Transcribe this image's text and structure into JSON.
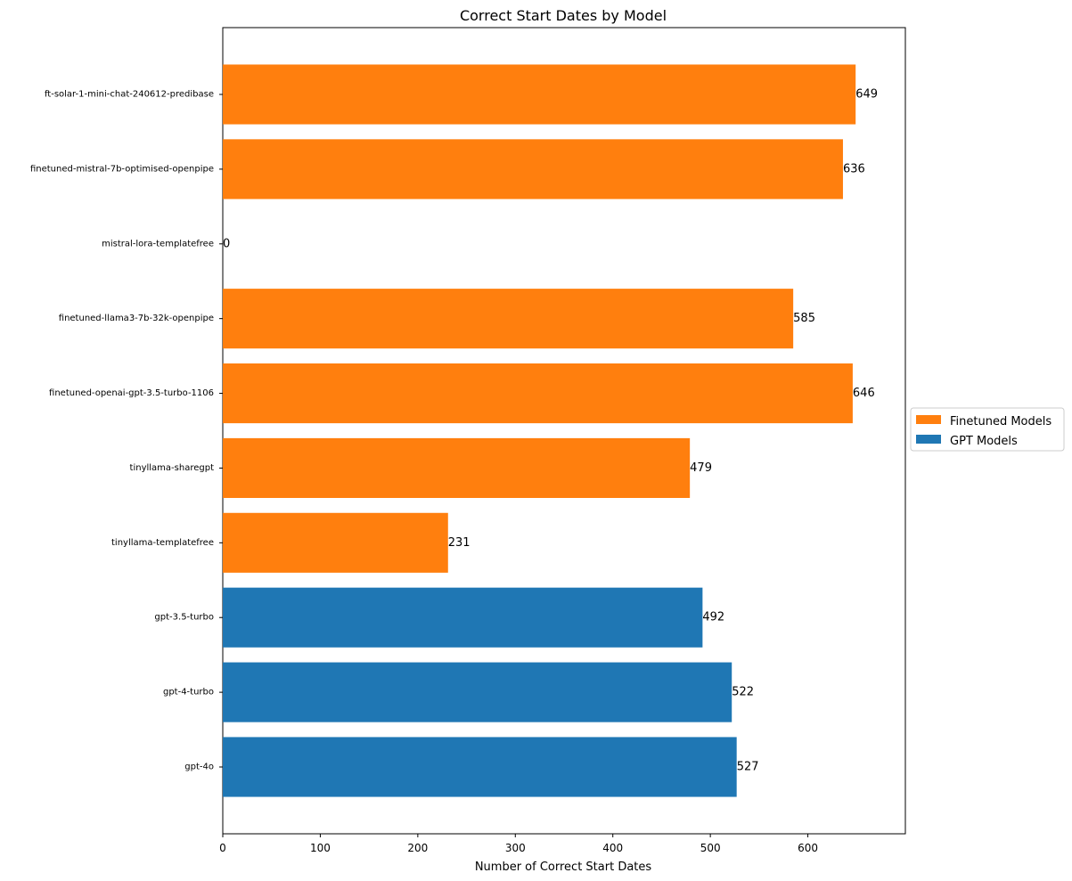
{
  "chart_data": {
    "type": "bar",
    "orientation": "horizontal",
    "title": "Correct Start Dates by Model",
    "xlabel": "Number of Correct Start Dates",
    "ylabel": "",
    "xlim": [
      0,
      700
    ],
    "xticks": [
      0,
      100,
      200,
      300,
      400,
      500,
      600
    ],
    "grid": false,
    "legend_position": "right",
    "legend": [
      {
        "name": "Finetuned Models",
        "color": "#ff7f0e"
      },
      {
        "name": "GPT Models",
        "color": "#1f77b4"
      }
    ],
    "categories": [
      "ft-solar-1-mini-chat-240612-predibase",
      "finetuned-mistral-7b-optimised-openpipe",
      "mistral-lora-templatefree",
      "finetuned-llama3-7b-32k-openpipe",
      "finetuned-openai-gpt-3.5-turbo-1106",
      "tinyllama-sharegpt",
      "tinyllama-templatefree",
      "gpt-3.5-turbo",
      "gpt-4-turbo",
      "gpt-4o"
    ],
    "values": [
      649,
      636,
      0,
      585,
      646,
      479,
      231,
      492,
      522,
      527
    ],
    "groups": [
      "Finetuned Models",
      "Finetuned Models",
      "Finetuned Models",
      "Finetuned Models",
      "Finetuned Models",
      "Finetuned Models",
      "Finetuned Models",
      "GPT Models",
      "GPT Models",
      "GPT Models"
    ]
  }
}
